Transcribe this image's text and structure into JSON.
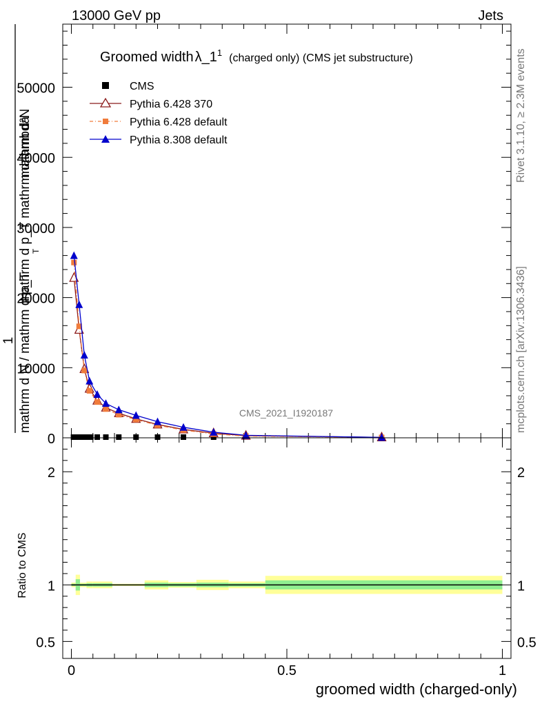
{
  "header": {
    "left": "13000 GeV pp",
    "right": "Jets"
  },
  "side_labels": {
    "rivet": "Rivet 3.1.10, ≥ 2.3M events",
    "mcplots": "mcplots.cern.ch [arXiv:1306.3436]"
  },
  "watermark": "CMS_2021_I1920187",
  "colors": {
    "cms": "#000000",
    "p6_370": "#8b1a1a",
    "p6_default": "#f07b3b",
    "p8": "#0000cc",
    "band_inner": "#90ee90",
    "band_outer": "#ffff99"
  },
  "chart_data": [
    {
      "type": "line",
      "title": {
        "main": "Groomed width",
        "symbol": "λ_1",
        "sup": "1",
        "suffix": "(charged only) (CMS jet substructure)"
      },
      "ylabel": {
        "one": "1",
        "denominator": "mathrm d N / mathrm d p_T",
        "numerator_l1": "mathrm d²N",
        "numerator_l2": "mathrm d p_T mathrm d lambda",
        "sub": "T"
      },
      "xlim": [
        -0.02,
        1.02
      ],
      "ylim": [
        0,
        59000
      ],
      "y_ticks": [
        {
          "v": 0,
          "label": "0"
        },
        {
          "v": 10000,
          "label": "10000"
        },
        {
          "v": 20000,
          "label": "20000"
        },
        {
          "v": 30000,
          "label": "30000"
        },
        {
          "v": 40000,
          "label": "40000"
        },
        {
          "v": 50000,
          "label": "50000"
        }
      ],
      "legend_position": "top-left",
      "series": [
        {
          "name": "CMS",
          "marker": "square",
          "x": [
            0.005,
            0.015,
            0.025,
            0.035,
            0.045,
            0.06,
            0.08,
            0.11,
            0.15,
            0.2,
            0.26,
            0.33
          ],
          "y": [
            0,
            0,
            0,
            0,
            0,
            0,
            0,
            0,
            0,
            0,
            0,
            0
          ]
        },
        {
          "name": "Pythia 6.428 370",
          "marker": "open-triangle",
          "x": [
            0.006,
            0.018,
            0.03,
            0.042,
            0.06,
            0.08,
            0.11,
            0.15,
            0.2,
            0.26,
            0.33,
            0.405,
            0.72
          ],
          "y": [
            22800,
            15400,
            9800,
            7000,
            5300,
            4300,
            3500,
            2700,
            1900,
            1200,
            650,
            300,
            60
          ]
        },
        {
          "name": "Pythia 6.428 default",
          "marker": "filled-square",
          "x": [
            0.006,
            0.018,
            0.03,
            0.042,
            0.06,
            0.08,
            0.11,
            0.15,
            0.2,
            0.26,
            0.33,
            0.405,
            0.72
          ],
          "y": [
            25000,
            15900,
            9600,
            6700,
            5100,
            4100,
            3300,
            2600,
            1800,
            1100,
            550,
            250,
            50
          ]
        },
        {
          "name": "Pythia 8.308 default",
          "marker": "filled-triangle",
          "x": [
            0.006,
            0.018,
            0.03,
            0.042,
            0.06,
            0.08,
            0.11,
            0.15,
            0.2,
            0.26,
            0.33,
            0.405,
            0.72
          ],
          "y": [
            26000,
            19000,
            11800,
            8100,
            6200,
            4900,
            4000,
            3200,
            2300,
            1500,
            800,
            350,
            60
          ]
        }
      ]
    },
    {
      "type": "area",
      "xlabel": "groomed width (charged-only)",
      "ylabel": "Ratio to CMS",
      "xlim": [
        -0.02,
        1.02
      ],
      "ylim": [
        0.35,
        2.3
      ],
      "x_ticks": [
        {
          "v": 0,
          "label": "0"
        },
        {
          "v": 0.5,
          "label": "0.5"
        },
        {
          "v": 1,
          "label": "1"
        }
      ],
      "y_ticks": [
        {
          "v": 0.5,
          "label": "0.5"
        },
        {
          "v": 1,
          "label": "1"
        },
        {
          "v": 2,
          "label": "2"
        }
      ],
      "bins": [
        {
          "x0": 0.0,
          "x1": 0.01,
          "inner": [
            0.99,
            1.01
          ],
          "outer": [
            0.98,
            1.02
          ]
        },
        {
          "x0": 0.01,
          "x1": 0.02,
          "inner": [
            0.95,
            1.05
          ],
          "outer": [
            0.91,
            1.09
          ]
        },
        {
          "x0": 0.02,
          "x1": 0.035,
          "inner": [
            0.99,
            1.01
          ],
          "outer": [
            0.98,
            1.02
          ]
        },
        {
          "x0": 0.035,
          "x1": 0.05,
          "inner": [
            0.985,
            1.015
          ],
          "outer": [
            0.97,
            1.03
          ]
        },
        {
          "x0": 0.05,
          "x1": 0.095,
          "inner": [
            0.985,
            1.015
          ],
          "outer": [
            0.97,
            1.03
          ]
        },
        {
          "x0": 0.095,
          "x1": 0.17,
          "inner": [
            0.995,
            1.005
          ],
          "outer": [
            0.99,
            1.01
          ]
        },
        {
          "x0": 0.17,
          "x1": 0.225,
          "inner": [
            0.98,
            1.02
          ],
          "outer": [
            0.96,
            1.04
          ]
        },
        {
          "x0": 0.225,
          "x1": 0.29,
          "inner": [
            0.985,
            1.015
          ],
          "outer": [
            0.975,
            1.025
          ]
        },
        {
          "x0": 0.29,
          "x1": 0.365,
          "inner": [
            0.98,
            1.02
          ],
          "outer": [
            0.955,
            1.045
          ]
        },
        {
          "x0": 0.365,
          "x1": 0.45,
          "inner": [
            0.985,
            1.015
          ],
          "outer": [
            0.97,
            1.03
          ]
        },
        {
          "x0": 0.45,
          "x1": 1.0,
          "inner": [
            0.96,
            1.04
          ],
          "outer": [
            0.92,
            1.08
          ]
        }
      ]
    }
  ]
}
